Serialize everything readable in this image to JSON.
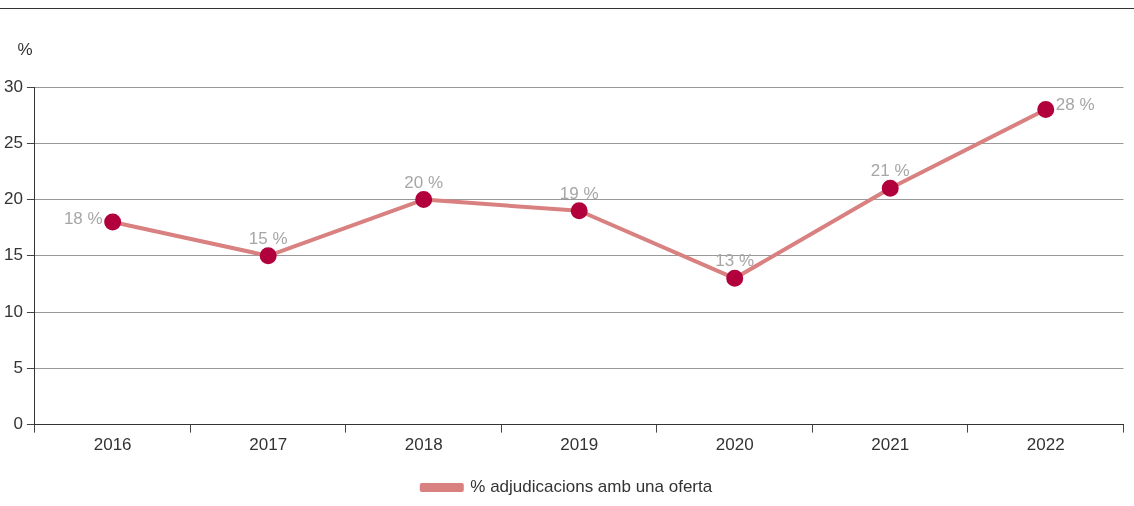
{
  "chart_data": {
    "type": "line",
    "ylabel": "%",
    "categories": [
      "2016",
      "2017",
      "2018",
      "2019",
      "2020",
      "2021",
      "2022"
    ],
    "series": [
      {
        "name": "% adjudicacions amb una oferta",
        "color": "#d98080",
        "colors": [
          "#b1003c",
          "#b1003c",
          "#b1003c",
          "#b1003c",
          "#b1003c",
          "#b1003c",
          "#b1003c"
        ],
        "values": [
          18,
          15,
          20,
          19,
          13,
          21,
          28
        ],
        "value_labels": [
          "18 %",
          "15 %",
          "20 %",
          "19 %",
          "13 %",
          "21 %",
          "28 %"
        ]
      }
    ],
    "ylim": [
      0,
      30
    ],
    "yticks": [
      0,
      5,
      10,
      15,
      20,
      25,
      30
    ],
    "grid": "y",
    "legend": "bottom",
    "marker": "circle",
    "line_style": "solid"
  }
}
